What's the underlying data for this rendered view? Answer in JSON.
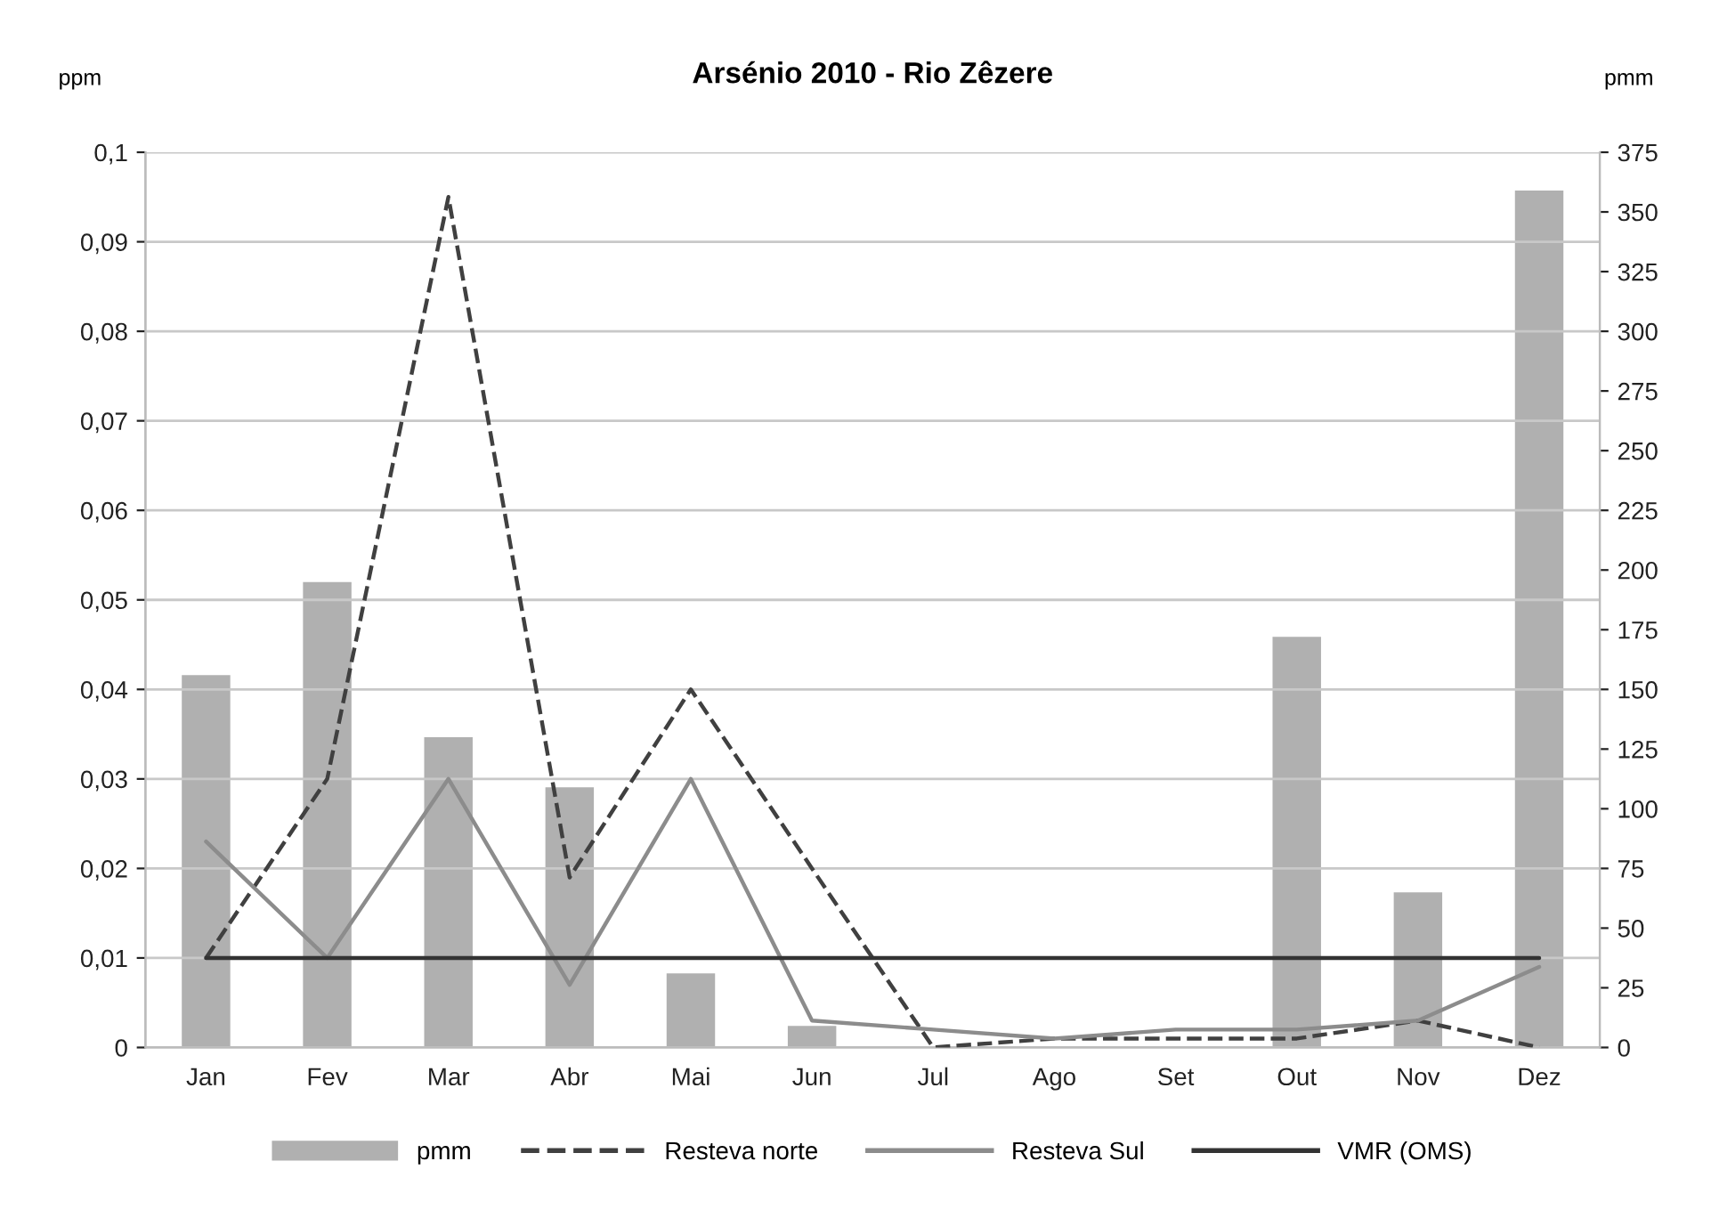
{
  "chart_data": {
    "type": "line",
    "title": "Arsénio 2010 - Rio Zêzere",
    "ylabel": "ppm",
    "y2label": "pmm",
    "categories": [
      "Jan",
      "Fev",
      "Mar",
      "Abr",
      "Mai",
      "Jun",
      "Jul",
      "Ago",
      "Set",
      "Out",
      "Nov",
      "Dez"
    ],
    "series": [
      {
        "name": "pmm",
        "type": "bar",
        "axis": "y2",
        "color": "#b0b0b0",
        "values": [
          156,
          195,
          130,
          109,
          31,
          9,
          0,
          0,
          0,
          172,
          65,
          359
        ]
      },
      {
        "name": "Resteva norte",
        "line_style": "dashed",
        "color": "#404040",
        "values": [
          0.01,
          0.03,
          0.095,
          0.019,
          0.04,
          0.02,
          0,
          0.001,
          0.001,
          0.001,
          0.003,
          0
        ]
      },
      {
        "name": "Resteva Sul",
        "line_style": "solid",
        "color": "#8c8c8c",
        "values": [
          0.023,
          0.01,
          0.03,
          0.007,
          0.03,
          0.003,
          0.002,
          0.001,
          0.002,
          0.002,
          0.003,
          0.009
        ]
      },
      {
        "name": "VMR (OMS)",
        "line_style": "solid",
        "color": "#333333",
        "values": [
          0.01,
          0.01,
          0.01,
          0.01,
          0.01,
          0.01,
          0.01,
          0.01,
          0.01,
          0.01,
          0.01,
          0.01
        ]
      }
    ],
    "ylim": [
      0,
      0.1
    ],
    "yticks": [
      0,
      {
        "value": 0.01,
        "label": "0,01"
      },
      {
        "value": 0.02,
        "label": "0,02"
      },
      {
        "value": 0.03,
        "label": "0,03"
      },
      {
        "value": 0.04,
        "label": "0,04"
      },
      {
        "value": 0.05,
        "label": "0,05"
      },
      {
        "value": 0.06,
        "label": "0,06"
      },
      {
        "value": 0.07,
        "label": "0,07"
      },
      {
        "value": 0.08,
        "label": "0,08"
      },
      {
        "value": 0.09,
        "label": "0,09"
      },
      {
        "value": 0.1,
        "label": "0,1"
      }
    ],
    "y2lim": [
      0,
      375
    ],
    "y2ticks": [
      0,
      25,
      50,
      75,
      100,
      125,
      150,
      175,
      200,
      225,
      250,
      275,
      300,
      325,
      350,
      375
    ],
    "grid": "y",
    "legend": "bottom",
    "marker": "none"
  }
}
